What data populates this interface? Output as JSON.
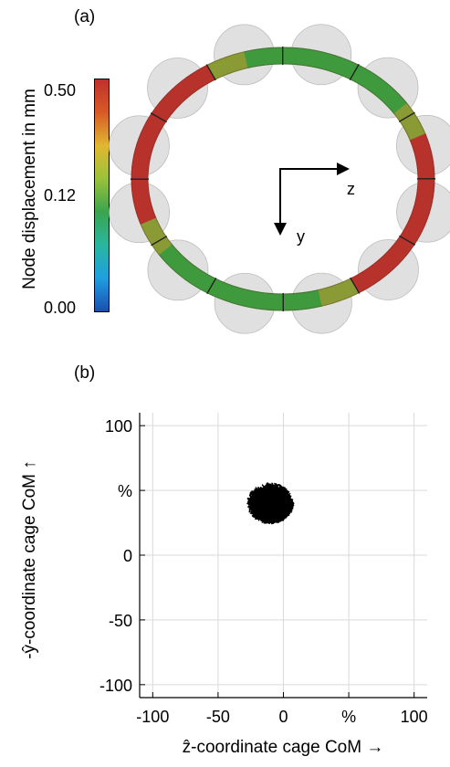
{
  "panel_a": {
    "label": "(a)",
    "colorbar": {
      "title": "Node displacement in mm",
      "ticks": [
        "0.50",
        "0.12",
        "0.00"
      ],
      "stops": [
        "#1a4fb0",
        "#1e9fe0",
        "#2ab6a0",
        "#3aa44e",
        "#9ac23a",
        "#e0b830",
        "#d85a26",
        "#c0302c"
      ]
    },
    "axes": {
      "z_label": "z",
      "y_label": "y"
    },
    "colors": {
      "ring_red": "#b8322c",
      "ring_green": "#3e9a3c",
      "ball_gray": "#d6d6d6"
    },
    "ring_pockets": 12
  },
  "panel_b": {
    "label": "(b)",
    "chart_data": {
      "type": "scatter",
      "xlabel": "ẑ-coordinate cage CoM →",
      "ylabel": "-ŷ-coordinate cage CoM ↑",
      "xlim": [
        -110,
        110
      ],
      "ylim": [
        -110,
        110
      ],
      "x_ticks": [
        "-100",
        "-50",
        "0",
        "%",
        "100"
      ],
      "y_ticks": [
        "100",
        "%",
        "0",
        "-50",
        "-100"
      ],
      "grid": true,
      "cluster": {
        "center_x": -10,
        "center_y": 40,
        "spread_x": 18,
        "spread_y": 16
      },
      "line_color": "#000000"
    }
  }
}
